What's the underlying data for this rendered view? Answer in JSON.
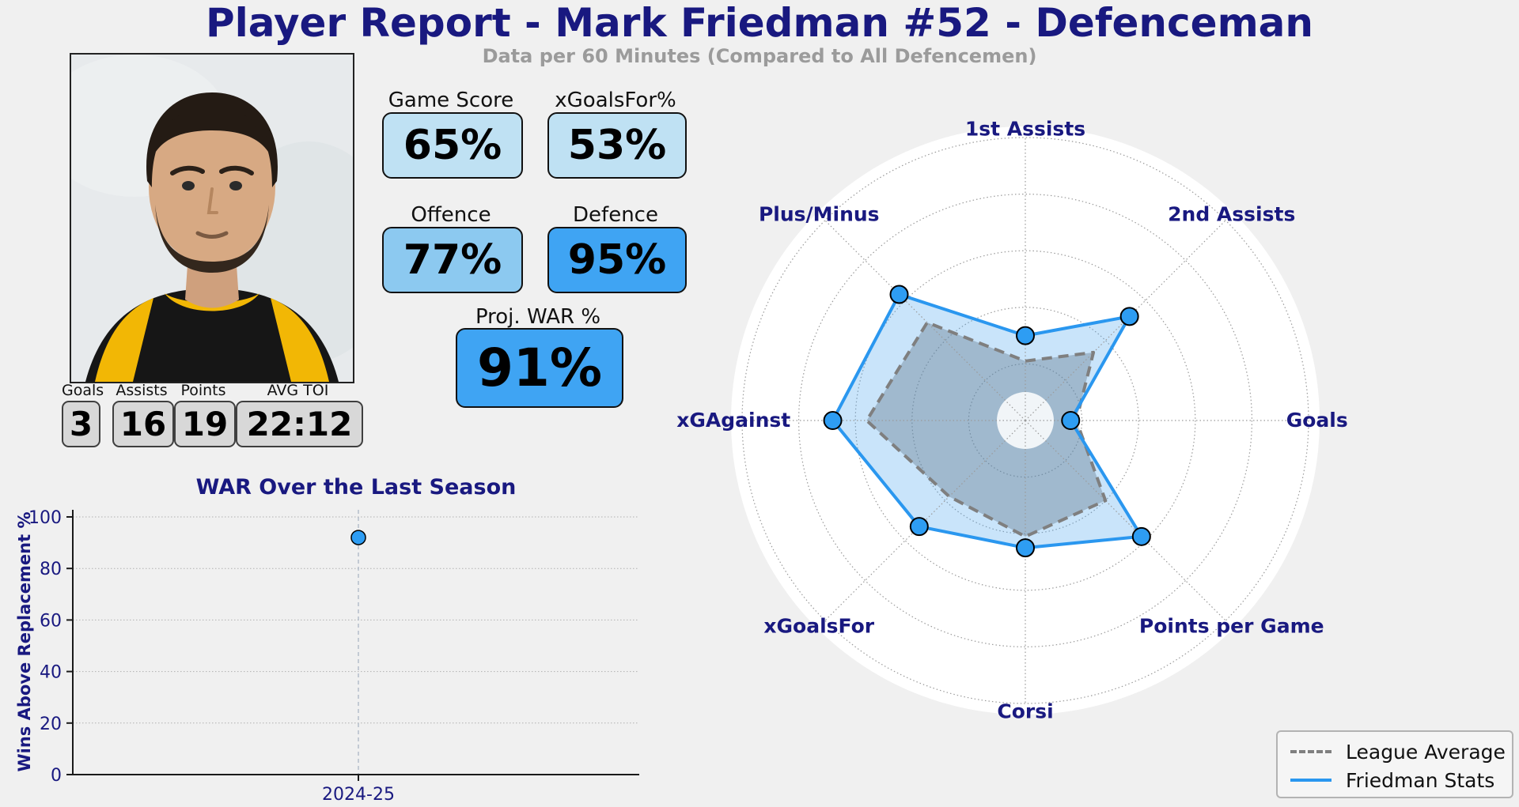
{
  "report": {
    "title": "Player Report - Mark Friedman #52 - Defenceman",
    "subtitle": "Data per 60 Minutes (Compared to All Defencemen)"
  },
  "colors": {
    "navy": "#191980",
    "box_light": "#bfe1f3",
    "box_medium": "#8cc9f0",
    "box_strong": "#3fa4f3",
    "blue_line": "#2a97ef",
    "marker_blue": "#2e9df3",
    "dash_gray": "#7f7f7f",
    "figure_bg": "#f0f0f0"
  },
  "stat_boxes": [
    {
      "label": "Game Score",
      "value": "65%",
      "tone": "light"
    },
    {
      "label": "xGoalsFor%",
      "value": "53%",
      "tone": "light"
    },
    {
      "label": "Offence",
      "value": "77%",
      "tone": "medium"
    },
    {
      "label": "Defence",
      "value": "95%",
      "tone": "strong"
    }
  ],
  "war_box": {
    "label": "Proj. WAR %",
    "value": "91%",
    "tone": "strong"
  },
  "counting_stats": [
    {
      "label": "Goals",
      "value": "3"
    },
    {
      "label": "Assists",
      "value": "16"
    },
    {
      "label": "Points",
      "value": "19"
    },
    {
      "label": "AVG TOI",
      "value": "22:12"
    }
  ],
  "chart_data": [
    {
      "type": "scatter",
      "title": "WAR Over the Last Season",
      "xlabel": "",
      "ylabel": "Wins Above Replacement %",
      "categories": [
        "2024-25"
      ],
      "values": [
        92
      ],
      "ylim": [
        0,
        100
      ],
      "yticks": [
        0,
        20,
        40,
        60,
        80,
        100
      ],
      "grid": true,
      "point_color": "#2e9df3"
    },
    {
      "type": "radar",
      "categories": [
        "1st Assists",
        "2nd Assists",
        "Goals",
        "Points per Game",
        "Corsi",
        "xGoalsFor",
        "xGAgainst",
        "Plus/Minus"
      ],
      "series": [
        {
          "name": "League Average",
          "style": "dashed-gray",
          "values": [
            21,
            34,
            18,
            40,
            41,
            38,
            56,
            49
          ]
        },
        {
          "name": "Friedman Stats",
          "style": "solid-blue",
          "values": [
            30,
            52,
            16,
            58,
            45,
            53,
            68,
            63
          ]
        }
      ],
      "rlim": [
        0,
        100
      ],
      "rings": [
        20,
        40,
        60,
        80,
        100
      ],
      "legend_position": "lower right"
    }
  ]
}
